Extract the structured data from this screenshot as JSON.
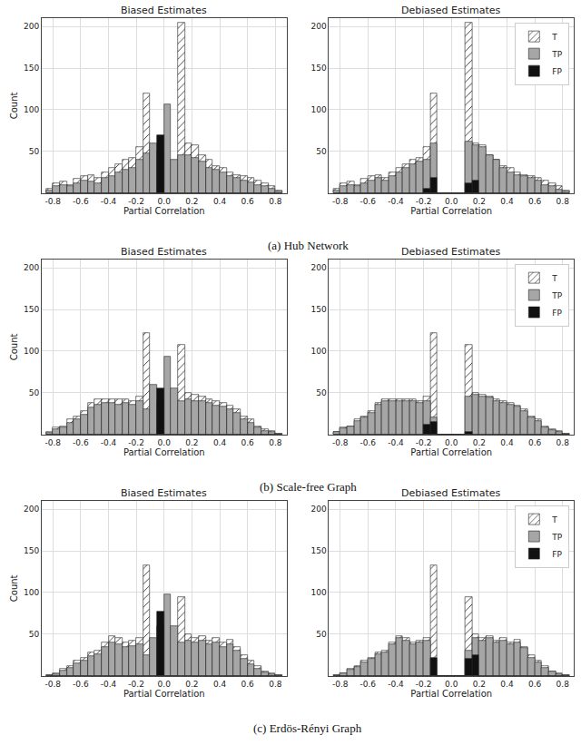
{
  "chart_data": [
    {
      "type": "bar",
      "title": "Biased Estimates",
      "xlabel": "Partial Correlation",
      "ylabel": "Count",
      "annotations": [
        "(a) Hub Network"
      ],
      "bins": [
        -0.85,
        -0.8,
        -0.75,
        -0.7,
        -0.65,
        -0.6,
        -0.55,
        -0.5,
        -0.45,
        -0.4,
        -0.35,
        -0.3,
        -0.25,
        -0.2,
        -0.15,
        -0.1,
        -0.05,
        0,
        0.05,
        0.1,
        0.15,
        0.2,
        0.25,
        0.3,
        0.35,
        0.4,
        0.45,
        0.5,
        0.55,
        0.6,
        0.65,
        0.7,
        0.75,
        0.8,
        0.85
      ],
      "series": [
        {
          "name": "T",
          "color": "#ffffff",
          "marker": "hatch",
          "values": [
            5,
            12,
            14,
            10,
            17,
            20,
            22,
            18,
            25,
            30,
            35,
            40,
            42,
            55,
            120,
            0,
            0,
            0,
            0,
            205,
            60,
            57,
            45,
            40,
            32,
            30,
            25,
            22,
            20,
            18,
            15,
            12,
            8,
            3
          ]
        },
        {
          "name": "TP",
          "color": "#a6a6a6",
          "values": [
            3,
            8,
            10,
            8,
            12,
            15,
            14,
            12,
            18,
            20,
            25,
            28,
            30,
            40,
            48,
            60,
            50,
            107,
            40,
            45,
            45,
            42,
            38,
            30,
            28,
            25,
            20,
            18,
            15,
            13,
            10,
            8,
            5,
            2
          ]
        },
        {
          "name": "FP",
          "color": "#111111",
          "values": [
            0,
            0,
            0,
            0,
            0,
            0,
            0,
            0,
            0,
            0,
            0,
            0,
            0,
            0,
            0,
            0,
            70,
            0,
            0,
            0,
            0,
            0,
            0,
            0,
            0,
            0,
            0,
            0,
            0,
            0,
            0,
            0,
            0,
            0
          ]
        }
      ],
      "xlim": [
        -0.88,
        0.88
      ],
      "xticks": [
        -0.8,
        -0.6,
        -0.4,
        -0.2,
        {
          "value": 0,
          "label": "0.0"
        },
        0.2,
        0.4,
        0.6,
        0.8
      ],
      "ylim": [
        0,
        210
      ],
      "yticks": [
        50,
        100,
        150,
        200
      ],
      "grid": true,
      "legend": false
    },
    {
      "type": "bar",
      "title": "Debiased Estimates",
      "xlabel": "Partial Correlation",
      "bins": [
        -0.85,
        -0.8,
        -0.75,
        -0.7,
        -0.65,
        -0.6,
        -0.55,
        -0.5,
        -0.45,
        -0.4,
        -0.35,
        -0.3,
        -0.25,
        -0.2,
        -0.15,
        -0.1,
        -0.05,
        0,
        0.05,
        0.1,
        0.15,
        0.2,
        0.25,
        0.3,
        0.35,
        0.4,
        0.45,
        0.5,
        0.55,
        0.6,
        0.65,
        0.7,
        0.75,
        0.8,
        0.85
      ],
      "series": [
        {
          "name": "T",
          "color": "#ffffff",
          "marker": "hatch",
          "values": [
            5,
            12,
            14,
            10,
            17,
            20,
            22,
            18,
            25,
            30,
            35,
            40,
            42,
            55,
            120,
            0,
            0,
            0,
            0,
            205,
            60,
            57,
            45,
            40,
            32,
            30,
            25,
            22,
            20,
            18,
            15,
            12,
            8,
            3
          ]
        },
        {
          "name": "TP",
          "color": "#a6a6a6",
          "values": [
            3,
            8,
            10,
            8,
            12,
            15,
            18,
            15,
            20,
            25,
            30,
            35,
            38,
            40,
            60,
            0,
            0,
            0,
            0,
            62,
            58,
            55,
            45,
            40,
            30,
            25,
            22,
            20,
            18,
            15,
            10,
            8,
            4,
            2
          ]
        },
        {
          "name": "FP",
          "color": "#111111",
          "values": [
            0,
            0,
            0,
            0,
            0,
            0,
            0,
            0,
            0,
            0,
            0,
            0,
            0,
            5,
            18,
            0,
            0,
            0,
            0,
            12,
            15,
            0,
            0,
            0,
            0,
            0,
            0,
            0,
            0,
            0,
            0,
            0,
            0,
            0
          ]
        }
      ],
      "xlim": [
        -0.88,
        0.88
      ],
      "xticks": [
        -0.8,
        -0.6,
        -0.4,
        -0.2,
        {
          "value": 0,
          "label": "0.0"
        },
        0.2,
        0.4,
        0.6,
        0.8
      ],
      "ylim": [
        0,
        210
      ],
      "yticks": [
        50,
        100,
        150,
        200
      ],
      "grid": true,
      "legend": "upper right"
    },
    {
      "type": "bar",
      "title": "Biased Estimates",
      "xlabel": "Partial Correlation",
      "ylabel": "Count",
      "annotations": [
        "(b) Scale-free Graph"
      ],
      "bins": [
        -0.85,
        -0.8,
        -0.75,
        -0.7,
        -0.65,
        -0.6,
        -0.55,
        -0.5,
        -0.45,
        -0.4,
        -0.35,
        -0.3,
        -0.25,
        -0.2,
        -0.15,
        -0.1,
        -0.05,
        0,
        0.05,
        0.1,
        0.15,
        0.2,
        0.25,
        0.3,
        0.35,
        0.4,
        0.45,
        0.5,
        0.55,
        0.6,
        0.65,
        0.7,
        0.75,
        0.8,
        0.85
      ],
      "series": [
        {
          "name": "T",
          "color": "#ffffff",
          "marker": "hatch",
          "values": [
            3,
            8,
            10,
            18,
            22,
            28,
            38,
            42,
            42,
            42,
            42,
            42,
            40,
            45,
            122,
            0,
            0,
            0,
            0,
            108,
            50,
            48,
            45,
            42,
            40,
            38,
            35,
            30,
            22,
            18,
            10,
            6,
            4,
            1
          ]
        },
        {
          "name": "TP",
          "color": "#a6a6a6",
          "values": [
            2,
            6,
            8,
            14,
            18,
            24,
            32,
            36,
            38,
            38,
            36,
            38,
            36,
            40,
            30,
            60,
            40,
            93,
            55,
            40,
            42,
            40,
            40,
            38,
            35,
            33,
            30,
            26,
            18,
            14,
            8,
            4,
            3,
            1
          ]
        },
        {
          "name": "FP",
          "color": "#111111",
          "values": [
            0,
            0,
            0,
            0,
            0,
            0,
            0,
            0,
            0,
            0,
            0,
            0,
            0,
            0,
            0,
            0,
            55,
            0,
            0,
            0,
            0,
            0,
            0,
            0,
            0,
            0,
            0,
            0,
            0,
            0,
            0,
            0,
            0,
            0
          ]
        }
      ],
      "xlim": [
        -0.88,
        0.88
      ],
      "xticks": [
        -0.8,
        -0.6,
        -0.4,
        -0.2,
        {
          "value": 0,
          "label": "0.0"
        },
        0.2,
        0.4,
        0.6,
        0.8
      ],
      "ylim": [
        0,
        210
      ],
      "yticks": [
        50,
        100,
        150,
        200
      ],
      "grid": true,
      "legend": false
    },
    {
      "type": "bar",
      "title": "Debiased Estimates",
      "xlabel": "Partial Correlation",
      "bins": [
        -0.85,
        -0.8,
        -0.75,
        -0.7,
        -0.65,
        -0.6,
        -0.55,
        -0.5,
        -0.45,
        -0.4,
        -0.35,
        -0.3,
        -0.25,
        -0.2,
        -0.15,
        -0.1,
        -0.05,
        0,
        0.05,
        0.1,
        0.15,
        0.2,
        0.25,
        0.3,
        0.35,
        0.4,
        0.45,
        0.5,
        0.55,
        0.6,
        0.65,
        0.7,
        0.75,
        0.8,
        0.85
      ],
      "series": [
        {
          "name": "T",
          "color": "#ffffff",
          "marker": "hatch",
          "values": [
            3,
            8,
            10,
            18,
            22,
            28,
            38,
            42,
            42,
            42,
            42,
            42,
            40,
            45,
            122,
            0,
            0,
            0,
            0,
            108,
            50,
            48,
            45,
            42,
            40,
            38,
            35,
            30,
            22,
            18,
            10,
            6,
            4,
            1
          ]
        },
        {
          "name": "TP",
          "color": "#a6a6a6",
          "values": [
            3,
            7,
            10,
            16,
            20,
            26,
            36,
            40,
            40,
            40,
            40,
            40,
            38,
            40,
            20,
            0,
            0,
            0,
            0,
            45,
            48,
            46,
            44,
            40,
            38,
            36,
            33,
            28,
            20,
            16,
            8,
            5,
            3,
            1
          ]
        },
        {
          "name": "FP",
          "color": "#111111",
          "values": [
            0,
            0,
            0,
            0,
            0,
            0,
            0,
            0,
            0,
            0,
            0,
            0,
            0,
            12,
            15,
            0,
            0,
            0,
            0,
            3,
            0,
            0,
            0,
            0,
            0,
            0,
            0,
            0,
            0,
            0,
            0,
            0,
            0,
            0
          ]
        }
      ],
      "xlim": [
        -0.88,
        0.88
      ],
      "xticks": [
        -0.8,
        -0.6,
        -0.4,
        -0.2,
        {
          "value": 0,
          "label": "0.0"
        },
        0.2,
        0.4,
        0.6,
        0.8
      ],
      "ylim": [
        0,
        210
      ],
      "yticks": [
        50,
        100,
        150,
        200
      ],
      "grid": true,
      "legend": "upper right"
    },
    {
      "type": "bar",
      "title": "Biased Estimates",
      "xlabel": "Partial Correlation",
      "ylabel": "Count",
      "annotations": [
        "(c) Erdös-Rényi Graph"
      ],
      "bins": [
        -0.85,
        -0.8,
        -0.75,
        -0.7,
        -0.65,
        -0.6,
        -0.55,
        -0.5,
        -0.45,
        -0.4,
        -0.35,
        -0.3,
        -0.25,
        -0.2,
        -0.15,
        -0.1,
        -0.05,
        0,
        0.05,
        0.1,
        0.15,
        0.2,
        0.25,
        0.3,
        0.35,
        0.4,
        0.45,
        0.5,
        0.55,
        0.6,
        0.65,
        0.7,
        0.75,
        0.8,
        0.85
      ],
      "series": [
        {
          "name": "T",
          "color": "#ffffff",
          "marker": "hatch",
          "values": [
            1,
            3,
            8,
            12,
            18,
            22,
            28,
            30,
            40,
            48,
            45,
            40,
            42,
            45,
            133,
            0,
            0,
            0,
            0,
            95,
            50,
            45,
            48,
            42,
            45,
            40,
            43,
            35,
            25,
            18,
            12,
            5,
            3,
            1
          ]
        },
        {
          "name": "TP",
          "color": "#a6a6a6",
          "values": [
            1,
            2,
            6,
            10,
            15,
            18,
            24,
            26,
            35,
            40,
            38,
            35,
            36,
            38,
            25,
            45,
            60,
            98,
            60,
            40,
            42,
            40,
            42,
            38,
            40,
            35,
            38,
            30,
            20,
            14,
            8,
            4,
            2,
            1
          ]
        },
        {
          "name": "FP",
          "color": "#111111",
          "values": [
            0,
            0,
            0,
            0,
            0,
            0,
            0,
            0,
            0,
            0,
            0,
            0,
            0,
            0,
            0,
            0,
            77,
            0,
            0,
            0,
            0,
            0,
            0,
            0,
            0,
            0,
            0,
            0,
            0,
            0,
            0,
            0,
            0,
            0
          ]
        }
      ],
      "xlim": [
        -0.88,
        0.88
      ],
      "xticks": [
        -0.8,
        -0.6,
        -0.4,
        -0.2,
        {
          "value": 0,
          "label": "0.0"
        },
        0.2,
        0.4,
        0.6,
        0.8
      ],
      "ylim": [
        0,
        210
      ],
      "yticks": [
        50,
        100,
        150,
        200
      ],
      "grid": true,
      "legend": false
    },
    {
      "type": "bar",
      "title": "Debiased Estimates",
      "xlabel": "Partial Correlation",
      "bins": [
        -0.85,
        -0.8,
        -0.75,
        -0.7,
        -0.65,
        -0.6,
        -0.55,
        -0.5,
        -0.45,
        -0.4,
        -0.35,
        -0.3,
        -0.25,
        -0.2,
        -0.15,
        -0.1,
        -0.05,
        0,
        0.05,
        0.1,
        0.15,
        0.2,
        0.25,
        0.3,
        0.35,
        0.4,
        0.45,
        0.5,
        0.55,
        0.6,
        0.65,
        0.7,
        0.75,
        0.8,
        0.85
      ],
      "series": [
        {
          "name": "T",
          "color": "#ffffff",
          "marker": "hatch",
          "values": [
            1,
            3,
            8,
            12,
            18,
            22,
            28,
            30,
            40,
            48,
            45,
            40,
            42,
            45,
            133,
            0,
            0,
            0,
            0,
            95,
            50,
            45,
            48,
            42,
            45,
            40,
            43,
            35,
            25,
            18,
            12,
            5,
            3,
            1
          ]
        },
        {
          "name": "TP",
          "color": "#a6a6a6",
          "values": [
            1,
            3,
            7,
            11,
            16,
            20,
            26,
            28,
            38,
            45,
            42,
            38,
            40,
            42,
            20,
            0,
            0,
            0,
            0,
            30,
            45,
            42,
            45,
            40,
            42,
            38,
            40,
            33,
            22,
            16,
            10,
            5,
            2,
            1
          ]
        },
        {
          "name": "FP",
          "color": "#111111",
          "values": [
            0,
            0,
            0,
            0,
            0,
            0,
            0,
            0,
            0,
            0,
            0,
            0,
            0,
            0,
            22,
            0,
            0,
            0,
            0,
            20,
            25,
            0,
            0,
            0,
            0,
            0,
            0,
            0,
            0,
            0,
            0,
            0,
            0,
            0
          ]
        }
      ],
      "xlim": [
        -0.88,
        0.88
      ],
      "xticks": [
        -0.8,
        -0.6,
        -0.4,
        -0.2,
        {
          "value": 0,
          "label": "0.0"
        },
        0.2,
        0.4,
        0.6,
        0.8
      ],
      "ylim": [
        0,
        210
      ],
      "yticks": [
        50,
        100,
        150,
        200
      ],
      "grid": true,
      "legend": "upper right"
    }
  ]
}
